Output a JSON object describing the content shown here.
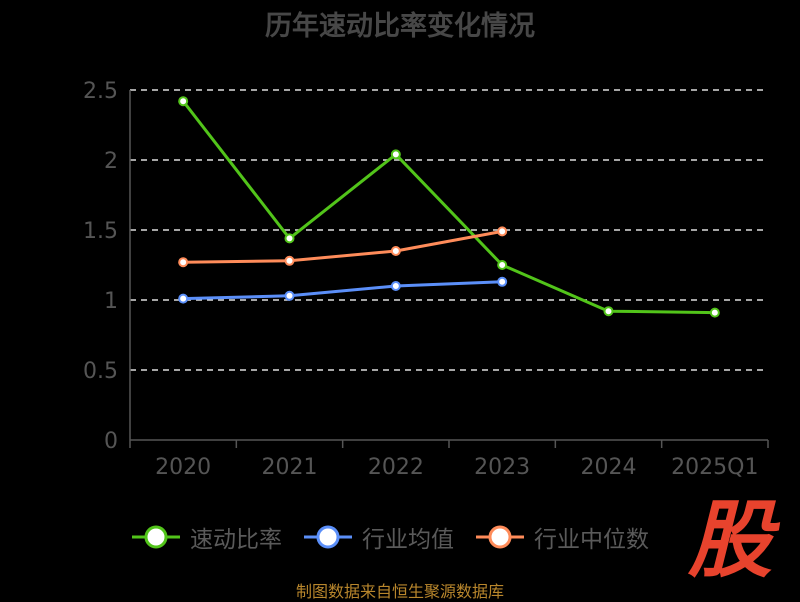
{
  "chart_data": {
    "type": "line",
    "title": "历年速动比率变化情况",
    "categories": [
      "2020",
      "2021",
      "2022",
      "2023",
      "2024",
      "2025Q1"
    ],
    "ylim": [
      0,
      2.5
    ],
    "yticks": [
      "0",
      "0.5",
      "1",
      "1.5",
      "2",
      "2.5"
    ],
    "grid": true,
    "legend_position": "bottom",
    "series": [
      {
        "name": "速动比率",
        "color": "#52c41a",
        "values": [
          2.42,
          1.44,
          2.04,
          1.25,
          0.92,
          0.91
        ]
      },
      {
        "name": "行业均值",
        "color": "#5b8ff9",
        "values": [
          1.01,
          1.03,
          1.1,
          1.13,
          null,
          null
        ]
      },
      {
        "name": "行业中位数",
        "color": "#ff8c5a",
        "values": [
          1.27,
          1.28,
          1.35,
          1.49,
          null,
          null
        ]
      }
    ]
  },
  "footer": {
    "source": "制图数据来自恒生聚源数据库"
  },
  "watermark": {
    "text": "股"
  }
}
